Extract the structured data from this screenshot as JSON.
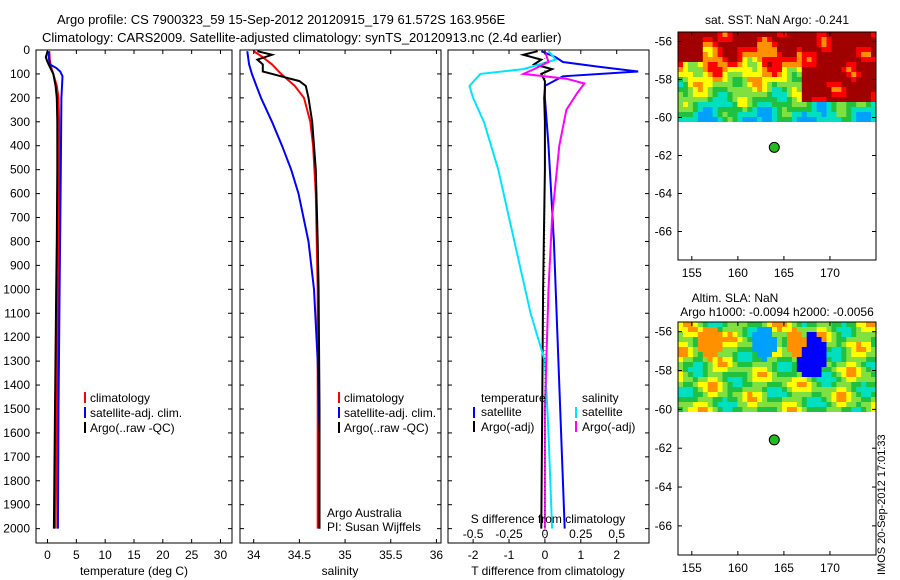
{
  "header": {
    "line1": "Argo profile: CS 7900323_59 15-Sep-2012 20120915_179 61.572S 163.956E",
    "line2": "Climatology: CARS2009. Satellite-adjusted climatology: synTS_20120913.nc (2.4d earlier)"
  },
  "colors": {
    "climatology": "#ff0000",
    "satellite": "#0000ff",
    "argo": "#000000",
    "sal_satellite": "#00e5ff",
    "sal_argo": "#ff00ff",
    "float_marker": "#22bb22"
  },
  "depth_ticks": [
    "0",
    "100",
    "200",
    "300",
    "400",
    "500",
    "600",
    "700",
    "800",
    "900",
    "1000",
    "1100",
    "1200",
    "1300",
    "1400",
    "1500",
    "1600",
    "1700",
    "1800",
    "1900",
    "2000"
  ],
  "chart_data": [
    {
      "type": "line",
      "name": "temperature-profile",
      "xlabel": "temperature (deg C)",
      "xlim": [
        -2,
        32
      ],
      "ylim": [
        2060,
        0
      ],
      "xticks": [
        "0",
        "5",
        "10",
        "15",
        "20",
        "25",
        "30"
      ],
      "legend": [
        "climatology",
        "satellite-adj. clim.",
        "Argo(..raw -QC)"
      ],
      "legend_position": "bottom-center",
      "series": [
        {
          "name": "climatology",
          "color_key": "climatology",
          "depth": [
            5,
            40,
            70,
            100,
            150,
            200,
            300,
            500,
            800,
            1000,
            1500,
            2000
          ],
          "values": [
            0.3,
            0.4,
            0.6,
            1.0,
            1.6,
            1.9,
            2.0,
            2.0,
            1.9,
            1.8,
            1.6,
            1.4
          ]
        },
        {
          "name": "satellite-adj. clim.",
          "color_key": "satellite",
          "depth": [
            5,
            30,
            60,
            75,
            90,
            110,
            200,
            500,
            1000,
            1500,
            2000
          ],
          "values": [
            0.2,
            0.2,
            0.4,
            1.5,
            2.2,
            2.6,
            2.4,
            2.3,
            2.1,
            1.9,
            1.8
          ]
        },
        {
          "name": "Argo(..raw -QC)",
          "color_key": "argo",
          "depth": [
            5,
            30,
            50,
            70,
            100,
            150,
            200,
            300,
            500,
            800,
            1000,
            1500,
            2000
          ],
          "values": [
            0.0,
            -0.3,
            0.0,
            0.4,
            1.0,
            1.4,
            1.6,
            1.7,
            1.7,
            1.6,
            1.5,
            1.3,
            1.1
          ]
        }
      ]
    },
    {
      "type": "line",
      "name": "salinity-profile",
      "xlabel": "salinity",
      "xlim": [
        33.85,
        36.05
      ],
      "ylim": [
        2060,
        0
      ],
      "xticks": [
        "34",
        "34.5",
        "35",
        "35.5",
        "36"
      ],
      "legend": [
        "climatology",
        "satellite-adj. clim.",
        "Argo(..raw -QC)"
      ],
      "legend_position": "bottom-right",
      "annotation": [
        "Argo Australia",
        "PI: Susan Wijffels"
      ],
      "series": [
        {
          "name": "climatology",
          "color_key": "climatology",
          "depth": [
            5,
            30,
            60,
            100,
            150,
            200,
            300,
            400,
            600,
            1000,
            1500,
            2000
          ],
          "values": [
            34.0,
            34.1,
            34.2,
            34.3,
            34.45,
            34.55,
            34.62,
            34.65,
            34.68,
            34.7,
            34.7,
            34.7
          ]
        },
        {
          "name": "satellite-adj. clim.",
          "color_key": "satellite",
          "depth": [
            5,
            60,
            100,
            150,
            200,
            300,
            400,
            500,
            600,
            800,
            1000,
            1300,
            1600,
            2000
          ],
          "values": [
            33.93,
            33.95,
            33.98,
            34.03,
            34.08,
            34.2,
            34.31,
            34.41,
            34.49,
            34.6,
            34.66,
            34.7,
            34.72,
            34.72
          ]
        },
        {
          "name": "Argo(..raw -QC)",
          "color_key": "argo",
          "depth": [
            5,
            20,
            40,
            60,
            90,
            110,
            130,
            150,
            200,
            300,
            500,
            800,
            1000,
            1500,
            2000
          ],
          "values": [
            34.04,
            34.2,
            34.04,
            34.1,
            34.1,
            34.3,
            34.5,
            34.57,
            34.6,
            34.64,
            34.68,
            34.7,
            34.71,
            34.72,
            34.72
          ]
        }
      ]
    },
    {
      "type": "line",
      "name": "difference-profile",
      "xlabel": "T difference from climatology",
      "xlabel_top": "S difference from climatology",
      "xlim": [
        -2.7,
        2.9
      ],
      "ylim": [
        2060,
        0
      ],
      "xticks": [
        "-2",
        "-1",
        "0",
        "1",
        "2"
      ],
      "xticks_s": [
        "-0.5",
        "-0.25",
        "0",
        "0.25",
        "0.5"
      ],
      "legend_left_title": "temperature",
      "legend_right_title": "salinity",
      "legend": [
        "satellite",
        "Argo(-adj)",
        "satellite",
        "Argo(-adj)"
      ],
      "series": [
        {
          "name": "temperature satellite",
          "color_key": "satellite",
          "depth": [
            5,
            30,
            50,
            70,
            90,
            110,
            150,
            200,
            400,
            800,
            1200,
            1600,
            2000
          ],
          "values": [
            -0.1,
            0.3,
            0.5,
            1.5,
            2.6,
            0.5,
            0.0,
            0.0,
            0.1,
            0.25,
            0.35,
            0.45,
            0.55
          ]
        },
        {
          "name": "temperature Argo(-adj)",
          "color_key": "argo",
          "depth": [
            5,
            20,
            40,
            60,
            80,
            100,
            130,
            160,
            200,
            300,
            500,
            1000,
            2000
          ],
          "values": [
            -0.2,
            -0.6,
            -0.1,
            -0.3,
            0.2,
            -0.1,
            0.0,
            0.0,
            -0.02,
            0.0,
            0.0,
            -0.05,
            -0.1
          ]
        },
        {
          "name": "salinity satellite",
          "color_key": "sal_satellite",
          "depth": [
            5,
            40,
            80,
            100,
            150,
            200,
            300,
            400,
            500,
            700,
            900,
            1100,
            1300,
            1600,
            2000
          ],
          "values": [
            0.1,
            0.3,
            -0.6,
            -1.8,
            -2.1,
            -2.0,
            -1.7,
            -1.5,
            -1.3,
            -1.0,
            -0.7,
            -0.4,
            0.0,
            0.1,
            0.2
          ]
        },
        {
          "name": "salinity Argo(-adj)",
          "color_key": "sal_argo",
          "depth": [
            5,
            50,
            80,
            100,
            120,
            140,
            180,
            250,
            400,
            700,
            1000,
            1500,
            2000
          ],
          "values": [
            0.0,
            0.1,
            -0.3,
            -0.6,
            0.6,
            1.1,
            0.9,
            0.6,
            0.4,
            0.2,
            0.1,
            0.0,
            0.0
          ]
        }
      ]
    },
    {
      "type": "heatmap",
      "name": "sst-map",
      "title": "sat. SST: NaN Argo: -0.241",
      "xlim": [
        153.5,
        175
      ],
      "ylim": [
        -67.5,
        -55.5
      ],
      "xticks": [
        "155",
        "160",
        "165",
        "170"
      ],
      "yticks": [
        "-56",
        "-58",
        "-60",
        "-62",
        "-64",
        "-66"
      ],
      "float_position": [
        163.956,
        -61.572
      ]
    },
    {
      "type": "heatmap",
      "name": "sla-map",
      "title": "Altim. SLA: NaN",
      "subtitle": "Argo h1000: -0.0094 h2000: -0.0056",
      "xlim": [
        153.5,
        175
      ],
      "ylim": [
        -67.5,
        -55.5
      ],
      "xticks": [
        "155",
        "160",
        "165",
        "170"
      ],
      "yticks": [
        "-56",
        "-58",
        "-60",
        "-62",
        "-64",
        "-66"
      ],
      "float_position": [
        163.956,
        -61.572
      ]
    }
  ],
  "stamp": "IMOS 20-Sep-2012 17:01:33"
}
